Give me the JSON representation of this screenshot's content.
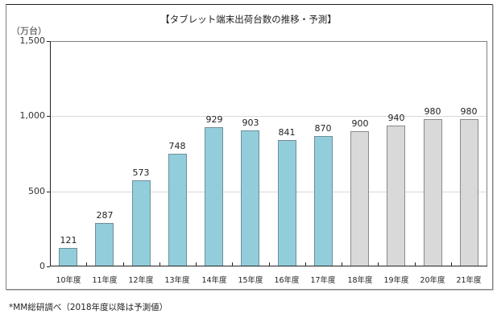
{
  "chart_data": {
    "type": "bar",
    "title": "【タブレット端末出荷台数の推移・予測】",
    "xlabel": "",
    "ylabel": "（万台）",
    "ylim": [
      0,
      1500
    ],
    "yticks": [
      "0",
      "500",
      "1,000",
      "1,500"
    ],
    "ytick_values": [
      0,
      500,
      1000,
      1500
    ],
    "grid": true,
    "legend": null,
    "categories": [
      "10年度",
      "11年度",
      "12年度",
      "13年度",
      "14年度",
      "15年度",
      "16年度",
      "17年度",
      "18年度",
      "19年度",
      "20年度",
      "21年度"
    ],
    "values": [
      121,
      287,
      573,
      748,
      929,
      903,
      841,
      870,
      900,
      940,
      980,
      980
    ],
    "value_labels": [
      "121",
      "287",
      "573",
      "748",
      "929",
      "903",
      "841",
      "870",
      "900",
      "940",
      "980",
      "980"
    ],
    "bar_kind": [
      "actual",
      "actual",
      "actual",
      "actual",
      "actual",
      "actual",
      "actual",
      "actual",
      "forecast",
      "forecast",
      "forecast",
      "forecast"
    ],
    "colors": {
      "actual": "#92CDDC",
      "forecast": "#D9D9D9"
    },
    "annotation": "*MM総研調べ（2018年度以降は予測値）"
  }
}
